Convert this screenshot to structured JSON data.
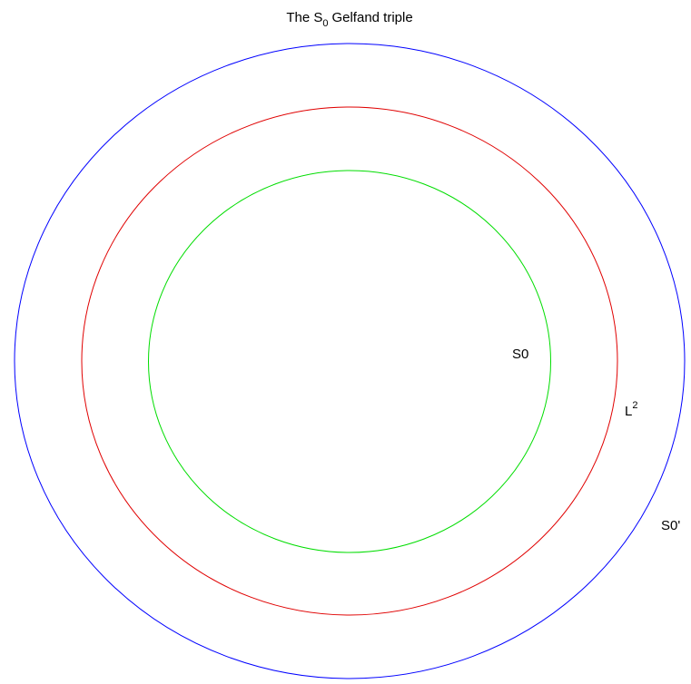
{
  "title": {
    "main": "The S",
    "sub": "0",
    "rest": "Gelfand triple"
  },
  "sets": [
    {
      "label": "S0"
    },
    {
      "label": "L",
      "sup": "2"
    },
    {
      "label": "S0'"
    }
  ]
}
